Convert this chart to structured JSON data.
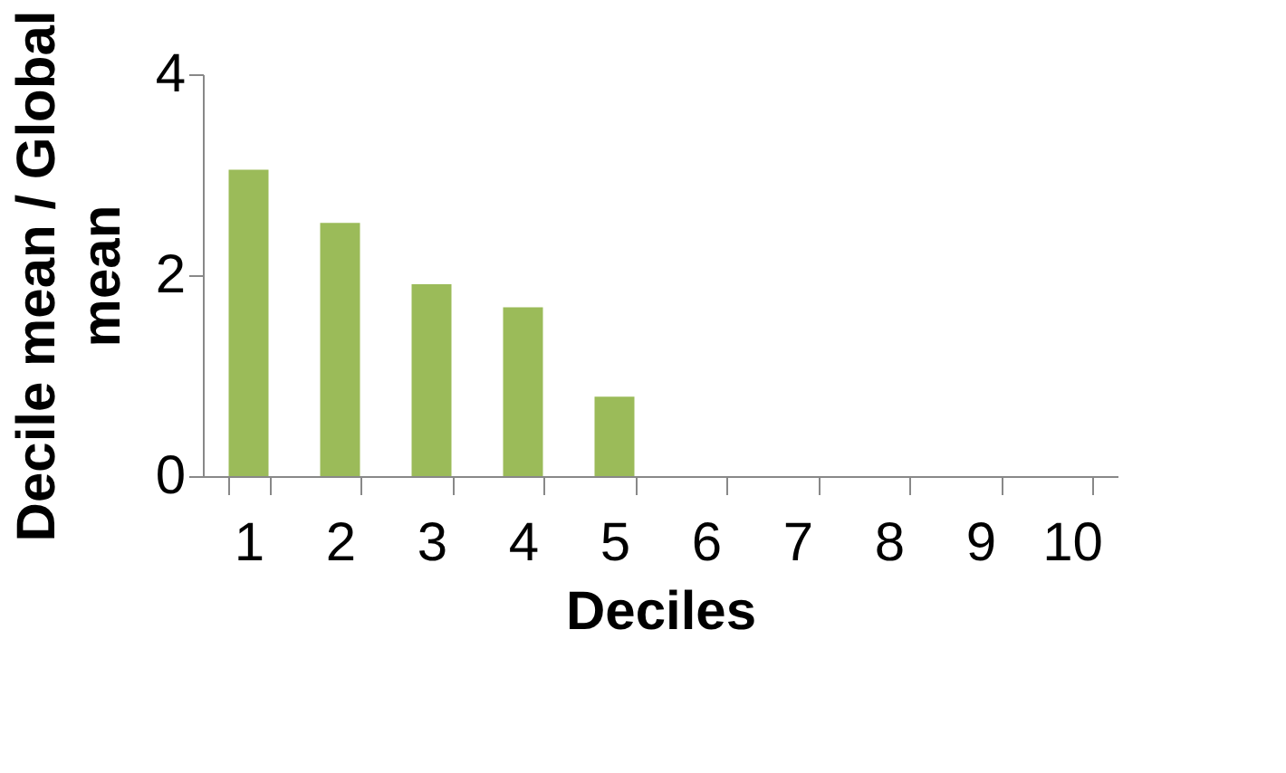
{
  "chart_data": {
    "type": "bar",
    "xlabel": "Deciles",
    "ylabel": "Decile mean / Global mean",
    "categories": [
      "1",
      "2",
      "3",
      "4",
      "5",
      "6",
      "7",
      "8",
      "9",
      "10"
    ],
    "values": [
      3.05,
      2.52,
      1.91,
      1.68,
      0.79,
      0,
      0,
      0,
      0,
      0
    ],
    "color": "#9bbb59",
    "ylim": [
      0,
      4
    ],
    "yticks": [
      0,
      2,
      4
    ],
    "grid": false
  }
}
